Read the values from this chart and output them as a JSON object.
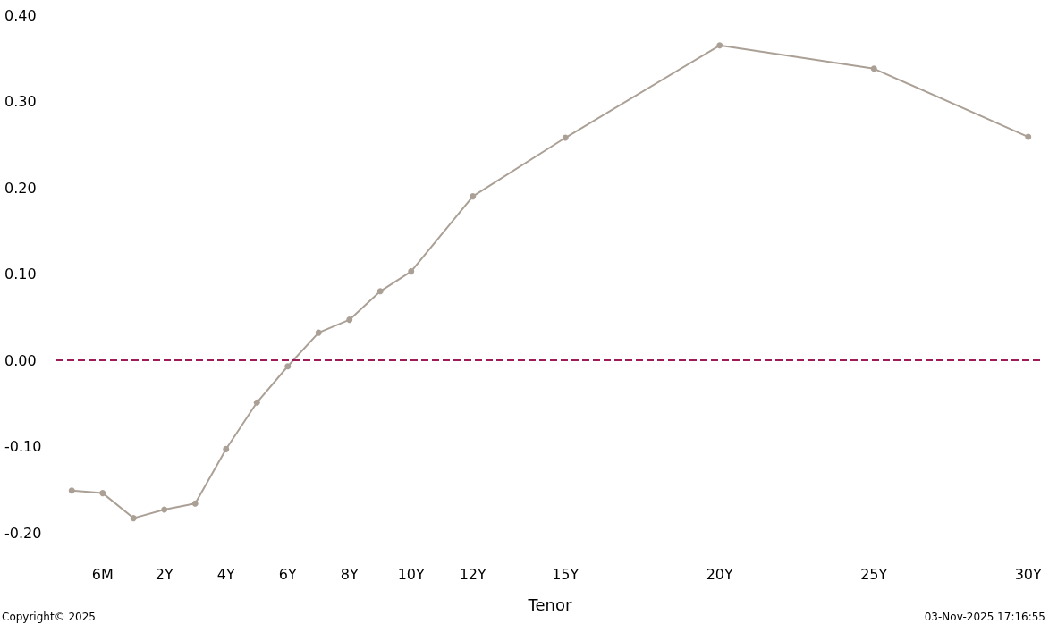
{
  "chart_data": {
    "type": "line",
    "xlabel": "Tenor",
    "categories": [
      null,
      "6M",
      null,
      "2Y",
      null,
      "4Y",
      null,
      "6Y",
      null,
      "8Y",
      null,
      "10Y",
      null,
      "12Y",
      null,
      null,
      "15Y",
      null,
      null,
      null,
      null,
      "20Y",
      null,
      null,
      null,
      null,
      "25Y",
      null,
      null,
      null,
      null,
      "30Y"
    ],
    "series": [
      {
        "color": "#aba096",
        "values": [
          -0.151,
          -0.154,
          -0.183,
          -0.173,
          -0.166,
          -0.103,
          -0.049,
          -0.007,
          0.032,
          0.047,
          0.08,
          0.103,
          null,
          0.19,
          null,
          null,
          0.258,
          null,
          null,
          null,
          null,
          0.365,
          null,
          null,
          null,
          null,
          0.338,
          null,
          null,
          null,
          null,
          0.259
        ]
      }
    ],
    "ylim": [
      -0.2,
      0.4
    ],
    "yticks": [
      {
        "value": -0.2,
        "label": "-0.20"
      },
      {
        "value": -0.1,
        "label": "-0.10"
      },
      {
        "value": 0,
        "label": "0.00"
      },
      {
        "value": 0.1,
        "label": "0.10"
      },
      {
        "value": 0.2,
        "label": "0.20"
      },
      {
        "value": 0.3,
        "label": "0.30"
      },
      {
        "value": 0.4,
        "label": "0.40"
      }
    ],
    "ref_lines": [
      {
        "axis": "y",
        "value": 0,
        "color": "#9e1b5a",
        "line_style": "dashed"
      }
    ],
    "grid": false,
    "marker": "circle",
    "line_style": "solid",
    "annotations": [
      "Copyright© 2025",
      "03-Nov-2025 17:16:55"
    ]
  }
}
